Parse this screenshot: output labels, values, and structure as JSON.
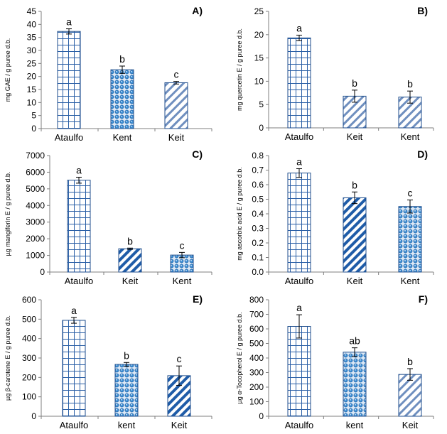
{
  "chart_data": [
    {
      "id": "A",
      "type": "bar",
      "panel_label": "A)",
      "ylabel": "mg GAE / g puree d.b.",
      "ylim": [
        0,
        45
      ],
      "yticks": [
        0,
        5,
        10,
        15,
        20,
        25,
        30,
        35,
        40,
        45
      ],
      "categories": [
        "Ataulfo",
        "Kent",
        "Keit"
      ],
      "values": [
        37.3,
        22.6,
        17.6
      ],
      "errors": [
        1.0,
        1.4,
        0.5
      ],
      "letters": [
        "a",
        "b",
        "c"
      ],
      "patterns": [
        "grid",
        "dots",
        "diag-light"
      ]
    },
    {
      "id": "B",
      "type": "bar",
      "panel_label": "B)",
      "ylabel": "mg quercetin E / g puree d.b.",
      "ylim": [
        0,
        25
      ],
      "yticks": [
        0,
        5,
        10,
        15,
        20,
        25
      ],
      "categories": [
        "Ataulfo",
        "Keit",
        "Kent"
      ],
      "values": [
        19.3,
        6.8,
        6.6
      ],
      "errors": [
        0.6,
        1.3,
        1.3
      ],
      "letters": [
        "a",
        "b",
        "b"
      ],
      "patterns": [
        "grid",
        "diag-light",
        "diag-light"
      ]
    },
    {
      "id": "C",
      "type": "bar",
      "panel_label": "C)",
      "ylabel": "µg mangiferin E / g puree d.b.",
      "ylim": [
        0,
        7000
      ],
      "yticks": [
        0,
        1000,
        2000,
        3000,
        4000,
        5000,
        6000,
        7000
      ],
      "categories": [
        "Ataulfo",
        "Keit",
        "Kent"
      ],
      "values": [
        5520,
        1400,
        1020
      ],
      "errors": [
        180,
        40,
        160
      ],
      "letters": [
        "a",
        "b",
        "c"
      ],
      "patterns": [
        "grid",
        "diag-bold",
        "dots"
      ]
    },
    {
      "id": "D",
      "type": "bar",
      "panel_label": "D)",
      "ylabel": "mg ascorbic acid E / g puree d.b.",
      "ylim": [
        0,
        0.8
      ],
      "yticks": [
        "0.0",
        "0.1",
        "0.2",
        "0.3",
        "0.4",
        "0.5",
        "0.6",
        "0.7",
        "0.8"
      ],
      "categories": [
        "Ataulfo",
        "Keit",
        "Kent"
      ],
      "values": [
        0.68,
        0.51,
        0.45
      ],
      "errors": [
        0.03,
        0.04,
        0.045
      ],
      "letters": [
        "a",
        "b",
        "c"
      ],
      "patterns": [
        "grid",
        "diag-bold",
        "dots"
      ]
    },
    {
      "id": "E",
      "type": "bar",
      "panel_label": "E)",
      "ylabel": "µg β-carotene E / g puree d.b.",
      "ylim": [
        0,
        600
      ],
      "yticks": [
        0,
        100,
        200,
        300,
        400,
        500,
        600
      ],
      "categories": [
        "Ataulfo",
        "kent",
        "Keit"
      ],
      "values": [
        494,
        267,
        209
      ],
      "errors": [
        15,
        10,
        50
      ],
      "letters": [
        "a",
        "b",
        "c"
      ],
      "patterns": [
        "grid",
        "dots",
        "diag-bold"
      ]
    },
    {
      "id": "F",
      "type": "bar",
      "panel_label": "F)",
      "ylabel": "µg α-Tocopherol E / g puree d.b.",
      "ylim": [
        0,
        800
      ],
      "yticks": [
        0,
        100,
        200,
        300,
        400,
        500,
        600,
        700,
        800
      ],
      "categories": [
        "Ataulfo",
        "kent",
        "Keit"
      ],
      "values": [
        617,
        440,
        287
      ],
      "errors": [
        80,
        30,
        40
      ],
      "letters": [
        "a",
        "ab",
        "b"
      ],
      "patterns": [
        "grid",
        "dots",
        "diag-light"
      ]
    }
  ],
  "colors": {
    "bar_stroke": "#1f4e8c",
    "pattern": "#2a5fa6",
    "dot_fill": "#3f8fd4",
    "axis": "#7f7f7f",
    "text": "#000000"
  }
}
